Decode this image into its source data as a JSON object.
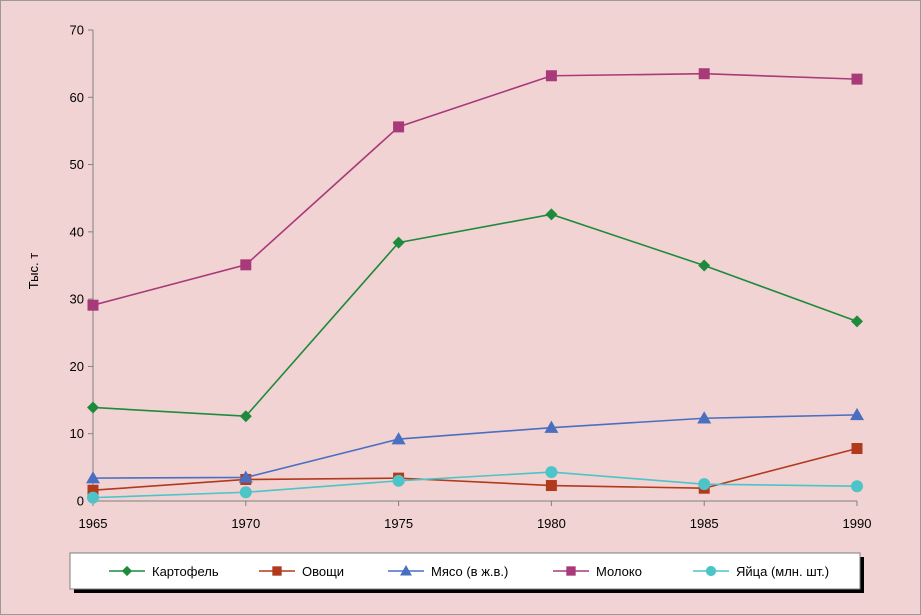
{
  "chart_data": {
    "type": "line",
    "title": "",
    "xlabel": "",
    "ylabel": "Тыс. т",
    "x": [
      "1965",
      "1970",
      "1975",
      "1980",
      "1985",
      "1990"
    ],
    "ylim": [
      0,
      70
    ],
    "yticks": [
      "0",
      "10",
      "20",
      "30",
      "40",
      "50",
      "60",
      "70"
    ],
    "grid": false,
    "legend_position": "bottom",
    "series": [
      {
        "name": "Картофель",
        "color": "#1e8a3c",
        "marker": "diamond",
        "values": [
          13.9,
          12.6,
          38.4,
          42.6,
          35.0,
          26.7
        ]
      },
      {
        "name": "Овощи",
        "color": "#b03a1c",
        "marker": "square",
        "values": [
          1.6,
          3.2,
          3.4,
          2.3,
          1.9,
          7.8
        ]
      },
      {
        "name": "Мясо (в ж.в.)",
        "color": "#4a6fc0",
        "marker": "triangle",
        "values": [
          3.4,
          3.5,
          9.2,
          10.9,
          12.3,
          12.8
        ]
      },
      {
        "name": "Молоко",
        "color": "#a83a7a",
        "marker": "square",
        "values": [
          29.1,
          35.1,
          55.6,
          63.2,
          63.5,
          62.7
        ]
      },
      {
        "name": "Яйца (млн. шт.)",
        "color": "#4cc4c8",
        "marker": "circle",
        "values": [
          0.5,
          1.3,
          3.0,
          4.3,
          2.5,
          2.2
        ]
      }
    ]
  }
}
